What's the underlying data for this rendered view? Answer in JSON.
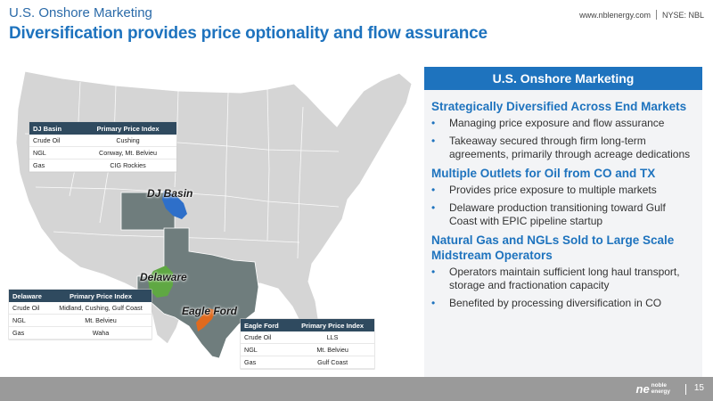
{
  "header": {
    "title": "U.S. Onshore Marketing",
    "subtitle": "Diversification provides price optionality and flow assurance",
    "website": "www.nblenergy.com",
    "ticker": "NYSE: NBL"
  },
  "map": {
    "labels": {
      "dj": "DJ Basin",
      "delaware": "Delaware",
      "eagle": "Eagle Ford"
    },
    "colors": {
      "us_fill": "#d5d5d5",
      "state_fill": "#6f7d7d",
      "dj_basin": "#2e6fc9",
      "delaware": "#5fa843",
      "eagle_ford": "#e06a1e"
    },
    "tables": {
      "dj": {
        "headers": [
          "DJ Basin",
          "Primary Price Index"
        ],
        "rows": [
          [
            "Crude Oil",
            "Cushing"
          ],
          [
            "NGL",
            "Conway, Mt. Belvieu"
          ],
          [
            "Gas",
            "CIG Rockies"
          ]
        ]
      },
      "delaware": {
        "headers": [
          "Delaware",
          "Primary Price Index"
        ],
        "rows": [
          [
            "Crude Oil",
            "Midland, Cushing, Gulf Coast"
          ],
          [
            "NGL",
            "Mt. Belvieu"
          ],
          [
            "Gas",
            "Waha"
          ]
        ]
      },
      "eagle": {
        "headers": [
          "Eagle Ford",
          "Primary Price Index"
        ],
        "rows": [
          [
            "Crude Oil",
            "LLS"
          ],
          [
            "NGL",
            "Mt. Belvieu"
          ],
          [
            "Gas",
            "Gulf Coast"
          ]
        ]
      }
    }
  },
  "panel": {
    "title": "U.S. Onshore Marketing",
    "sections": [
      {
        "heading": "Strategically Diversified Across End Markets",
        "bullets": [
          "Managing price exposure and flow assurance",
          "Takeaway secured through firm long-term agreements, primarily through acreage dedications"
        ]
      },
      {
        "heading": "Multiple Outlets for Oil from CO and TX",
        "bullets": [
          "Provides price exposure to multiple markets",
          "Delaware production transitioning toward Gulf Coast with EPIC pipeline startup"
        ]
      },
      {
        "heading": "Natural Gas and NGLs Sold to Large Scale Midstream Operators",
        "bullets": [
          "Operators maintain sufficient long haul transport, storage and fractionation capacity",
          "Benefited by processing diversification in CO"
        ]
      }
    ]
  },
  "footer": {
    "logo_mark": "ne",
    "logo_word1": "noble",
    "logo_word2": "energy",
    "page_number": "15",
    "bullet_glyph": "•"
  }
}
